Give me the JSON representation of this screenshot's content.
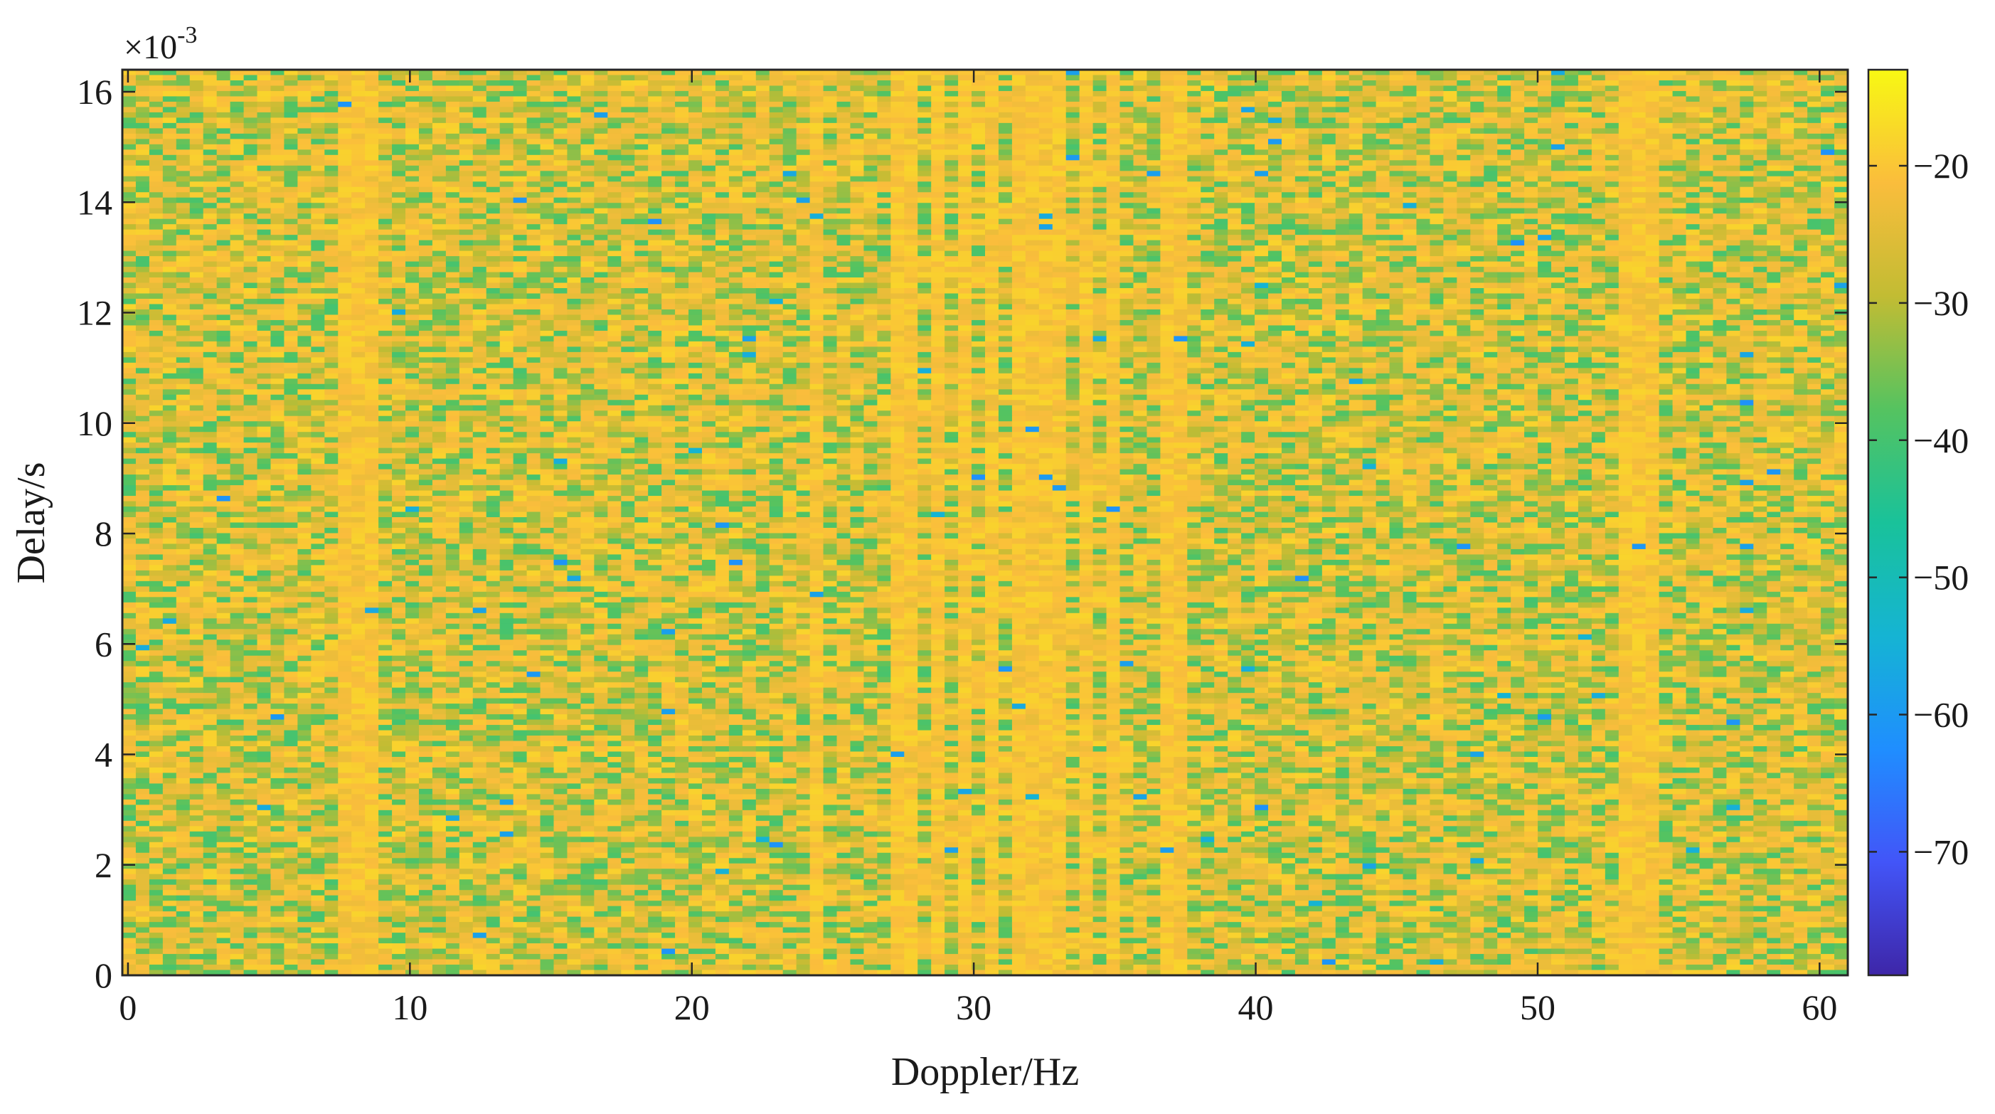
{
  "chart_data": {
    "type": "heatmap",
    "xlabel": "Doppler/Hz",
    "ylabel": "Delay/s",
    "xlim": [
      -0.2,
      61
    ],
    "ylim": [
      0,
      0.0164
    ],
    "x_ticks": [
      0,
      10,
      20,
      30,
      40,
      50,
      60
    ],
    "x_tick_labels": [
      "0",
      "10",
      "20",
      "30",
      "40",
      "50",
      "60"
    ],
    "y_ticks": [
      0,
      0.002,
      0.004,
      0.006,
      0.008,
      0.01,
      0.012,
      0.014,
      0.016
    ],
    "y_tick_labels": [
      "0",
      "2",
      "4",
      "6",
      "8",
      "10",
      "12",
      "14",
      "16"
    ],
    "y_exponent": {
      "base": "×10",
      "power": "-3"
    },
    "colorbar": {
      "colormap": "parula",
      "clim": [
        -79,
        -13
      ],
      "ticks": [
        -20,
        -30,
        -40,
        -50,
        -60,
        -70
      ],
      "tick_labels": [
        "−20",
        "−30",
        "−40",
        "−50",
        "−60",
        "−70"
      ]
    },
    "grid": false,
    "description_values": {
      "x_bins": 128,
      "y_bins": 170,
      "typical_level_range": [
        -40,
        -18
      ],
      "bright_columns_hz": [
        7.8,
        8.4,
        24.3,
        27.6,
        28.6,
        29.7,
        30.7,
        31.8,
        32.9,
        33.9,
        35.0,
        37.1,
        53.3,
        53.8
      ]
    }
  }
}
